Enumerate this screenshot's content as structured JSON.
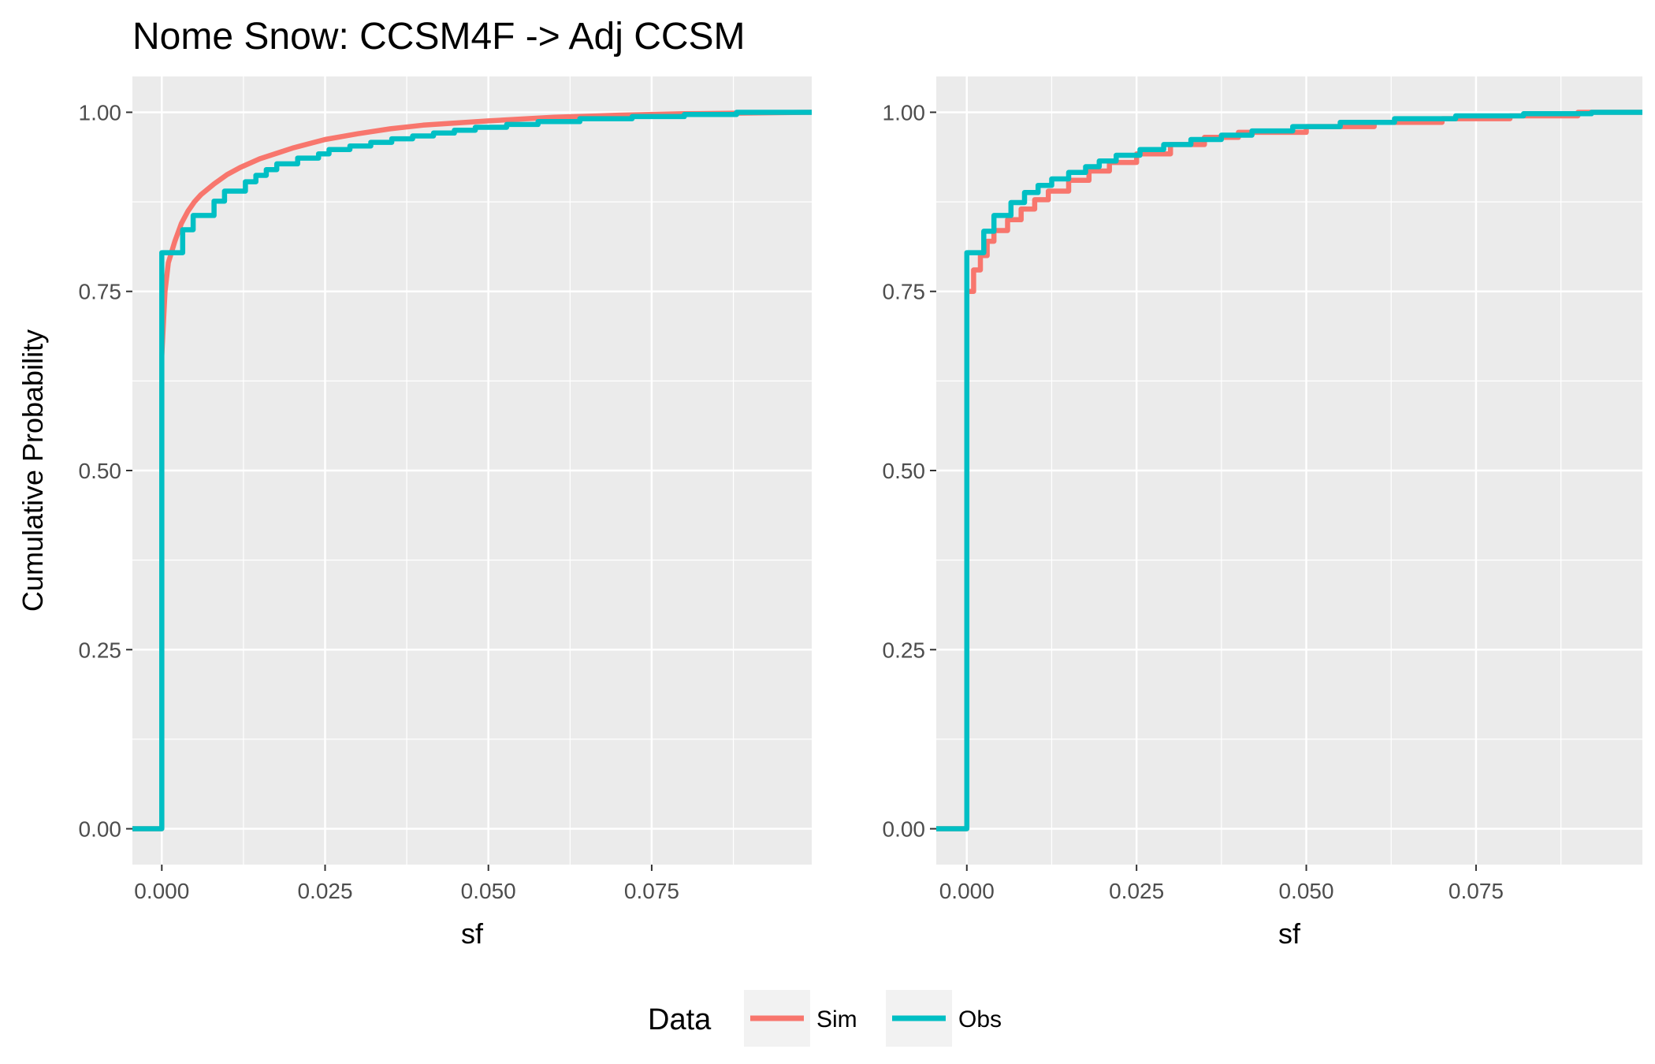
{
  "title": "Nome Snow: CCSM4F -> Adj CCSM",
  "colors": {
    "sim": "#F8766D",
    "obs": "#00BFC4",
    "panel": "#EBEBEB",
    "grid": "#FFFFFF"
  },
  "legend": {
    "title": "Data",
    "items": [
      {
        "label": "Sim",
        "color": "#F8766D"
      },
      {
        "label": "Obs",
        "color": "#00BFC4"
      }
    ]
  },
  "chart_data": [
    {
      "type": "line",
      "step": true,
      "xlabel": "sf",
      "ylabel": "Cumulative Probability",
      "xlim": [
        -0.0045,
        0.0995
      ],
      "ylim": [
        -0.05,
        1.05
      ],
      "x_ticks": [
        0.0,
        0.025,
        0.05,
        0.075
      ],
      "x_tick_labels": [
        "0.000",
        "0.025",
        "0.050",
        "0.075"
      ],
      "y_ticks": [
        0.0,
        0.25,
        0.5,
        0.75,
        1.0
      ],
      "y_tick_labels": [
        "0.00",
        "0.25",
        "0.50",
        "0.75",
        "1.00"
      ],
      "grid": true,
      "series": [
        {
          "name": "Sim",
          "color": "#F8766D",
          "x": [
            -0.0045,
            0.0,
            0.0,
            0.0005,
            0.001,
            0.002,
            0.003,
            0.004,
            0.005,
            0.006,
            0.008,
            0.01,
            0.012,
            0.015,
            0.018,
            0.02,
            0.025,
            0.03,
            0.035,
            0.04,
            0.05,
            0.06,
            0.07,
            0.08,
            0.09,
            0.0995
          ],
          "y": [
            0.0,
            0.0,
            0.66,
            0.75,
            0.79,
            0.82,
            0.845,
            0.862,
            0.875,
            0.885,
            0.9,
            0.913,
            0.923,
            0.935,
            0.944,
            0.95,
            0.962,
            0.97,
            0.977,
            0.982,
            0.988,
            0.993,
            0.996,
            0.998,
            0.999,
            1.0
          ]
        },
        {
          "name": "Obs",
          "color": "#00BFC4",
          "x": [
            -0.0045,
            0.0,
            0.0,
            0.0032,
            0.0032,
            0.0048,
            0.0048,
            0.008,
            0.008,
            0.0096,
            0.0096,
            0.0128,
            0.0128,
            0.0144,
            0.0144,
            0.016,
            0.016,
            0.0176,
            0.0176,
            0.0208,
            0.0208,
            0.024,
            0.024,
            0.0256,
            0.0256,
            0.0288,
            0.0288,
            0.032,
            0.032,
            0.0352,
            0.0352,
            0.0384,
            0.0384,
            0.0416,
            0.0416,
            0.0448,
            0.0448,
            0.048,
            0.048,
            0.0528,
            0.0528,
            0.0576,
            0.0576,
            0.064,
            0.064,
            0.072,
            0.072,
            0.08,
            0.08,
            0.088,
            0.088,
            0.0995
          ],
          "y": [
            0.0,
            0.0,
            0.804,
            0.804,
            0.836,
            0.836,
            0.856,
            0.856,
            0.876,
            0.876,
            0.89,
            0.89,
            0.903,
            0.903,
            0.912,
            0.912,
            0.92,
            0.92,
            0.928,
            0.928,
            0.936,
            0.936,
            0.942,
            0.942,
            0.948,
            0.948,
            0.953,
            0.953,
            0.958,
            0.958,
            0.963,
            0.963,
            0.967,
            0.967,
            0.971,
            0.971,
            0.975,
            0.975,
            0.979,
            0.979,
            0.983,
            0.983,
            0.987,
            0.987,
            0.991,
            0.991,
            0.994,
            0.994,
            0.997,
            0.997,
            1.0,
            1.0
          ]
        }
      ]
    },
    {
      "type": "line",
      "step": true,
      "xlabel": "sf",
      "ylabel": "",
      "xlim": [
        -0.0045,
        0.0995
      ],
      "ylim": [
        -0.05,
        1.05
      ],
      "x_ticks": [
        0.0,
        0.025,
        0.05,
        0.075
      ],
      "x_tick_labels": [
        "0.000",
        "0.025",
        "0.050",
        "0.075"
      ],
      "y_ticks": [
        0.0,
        0.25,
        0.5,
        0.75,
        1.0
      ],
      "y_tick_labels": [
        "0.00",
        "0.25",
        "0.50",
        "0.75",
        "1.00"
      ],
      "grid": true,
      "series": [
        {
          "name": "Sim",
          "color": "#F8766D",
          "x": [
            -0.0045,
            0.0,
            0.0,
            0.001,
            0.001,
            0.002,
            0.002,
            0.003,
            0.003,
            0.004,
            0.004,
            0.006,
            0.006,
            0.008,
            0.008,
            0.01,
            0.01,
            0.012,
            0.012,
            0.015,
            0.015,
            0.018,
            0.018,
            0.021,
            0.021,
            0.025,
            0.025,
            0.03,
            0.03,
            0.035,
            0.035,
            0.04,
            0.04,
            0.05,
            0.05,
            0.06,
            0.06,
            0.07,
            0.07,
            0.08,
            0.08,
            0.09,
            0.09,
            0.0995
          ],
          "y": [
            0.0,
            0.0,
            0.75,
            0.75,
            0.78,
            0.78,
            0.8,
            0.8,
            0.82,
            0.82,
            0.835,
            0.835,
            0.85,
            0.85,
            0.865,
            0.865,
            0.878,
            0.878,
            0.89,
            0.89,
            0.905,
            0.905,
            0.918,
            0.918,
            0.93,
            0.93,
            0.942,
            0.942,
            0.955,
            0.955,
            0.965,
            0.965,
            0.972,
            0.972,
            0.98,
            0.98,
            0.986,
            0.986,
            0.991,
            0.991,
            0.995,
            0.995,
            1.0,
            1.0
          ]
        },
        {
          "name": "Obs",
          "color": "#00BFC4",
          "x": [
            -0.0045,
            0.0,
            0.0,
            0.0025,
            0.0025,
            0.004,
            0.004,
            0.0065,
            0.0065,
            0.0085,
            0.0085,
            0.0105,
            0.0105,
            0.0125,
            0.0125,
            0.015,
            0.015,
            0.0175,
            0.0175,
            0.0195,
            0.0195,
            0.022,
            0.022,
            0.0255,
            0.0255,
            0.029,
            0.029,
            0.033,
            0.033,
            0.0375,
            0.0375,
            0.042,
            0.042,
            0.048,
            0.048,
            0.055,
            0.055,
            0.063,
            0.063,
            0.072,
            0.072,
            0.082,
            0.082,
            0.092,
            0.092,
            0.0995
          ],
          "y": [
            0.0,
            0.0,
            0.804,
            0.804,
            0.834,
            0.834,
            0.856,
            0.856,
            0.874,
            0.874,
            0.888,
            0.888,
            0.898,
            0.898,
            0.907,
            0.907,
            0.916,
            0.916,
            0.924,
            0.924,
            0.932,
            0.932,
            0.94,
            0.94,
            0.948,
            0.948,
            0.955,
            0.955,
            0.962,
            0.962,
            0.968,
            0.968,
            0.974,
            0.974,
            0.98,
            0.98,
            0.986,
            0.986,
            0.991,
            0.991,
            0.995,
            0.995,
            0.998,
            0.998,
            1.0,
            1.0
          ]
        }
      ]
    }
  ]
}
